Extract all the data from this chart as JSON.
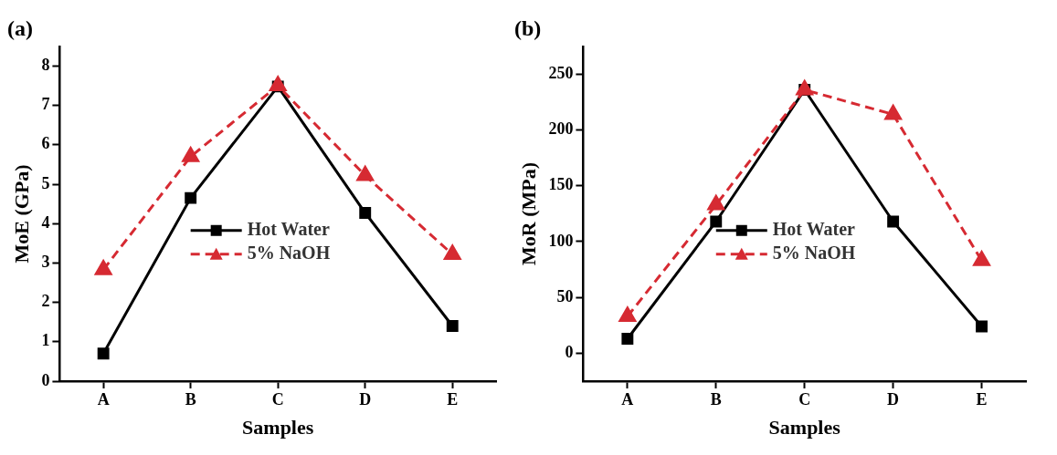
{
  "chart_data": [
    {
      "type": "line",
      "title": "(a)",
      "xlabel": "Samples",
      "ylabel": "MoE (GPa)",
      "categories": [
        "A",
        "B",
        "C",
        "D",
        "E"
      ],
      "ylim": [
        0,
        8.5
      ],
      "yticks": [
        0,
        1,
        2,
        3,
        4,
        5,
        6,
        7,
        8
      ],
      "grid": false,
      "legend": "center",
      "series": [
        {
          "name": "Hot Water",
          "color": "#000000",
          "marker": "square",
          "line_style": "solid",
          "values": [
            0.7,
            4.65,
            7.48,
            4.27,
            1.4
          ]
        },
        {
          "name": "5% NaOH",
          "color": "#d62a32",
          "marker": "triangle",
          "line_style": "dashed",
          "values": [
            2.83,
            5.7,
            7.5,
            5.22,
            3.22
          ]
        }
      ]
    },
    {
      "type": "line",
      "title": "(b)",
      "xlabel": "Samples",
      "ylabel": "MoR (MPa)",
      "categories": [
        "A",
        "B",
        "C",
        "D",
        "E"
      ],
      "ylim": [
        -25,
        275
      ],
      "yticks": [
        0,
        50,
        100,
        150,
        200,
        250
      ],
      "grid": false,
      "legend": "center",
      "series": [
        {
          "name": "Hot Water",
          "color": "#000000",
          "marker": "square",
          "line_style": "solid",
          "values": [
            13,
            118,
            236,
            118,
            24
          ]
        },
        {
          "name": "5% NaOH",
          "color": "#d62a32",
          "marker": "triangle",
          "line_style": "dashed",
          "values": [
            33,
            133,
            236,
            214,
            83
          ]
        }
      ]
    }
  ]
}
